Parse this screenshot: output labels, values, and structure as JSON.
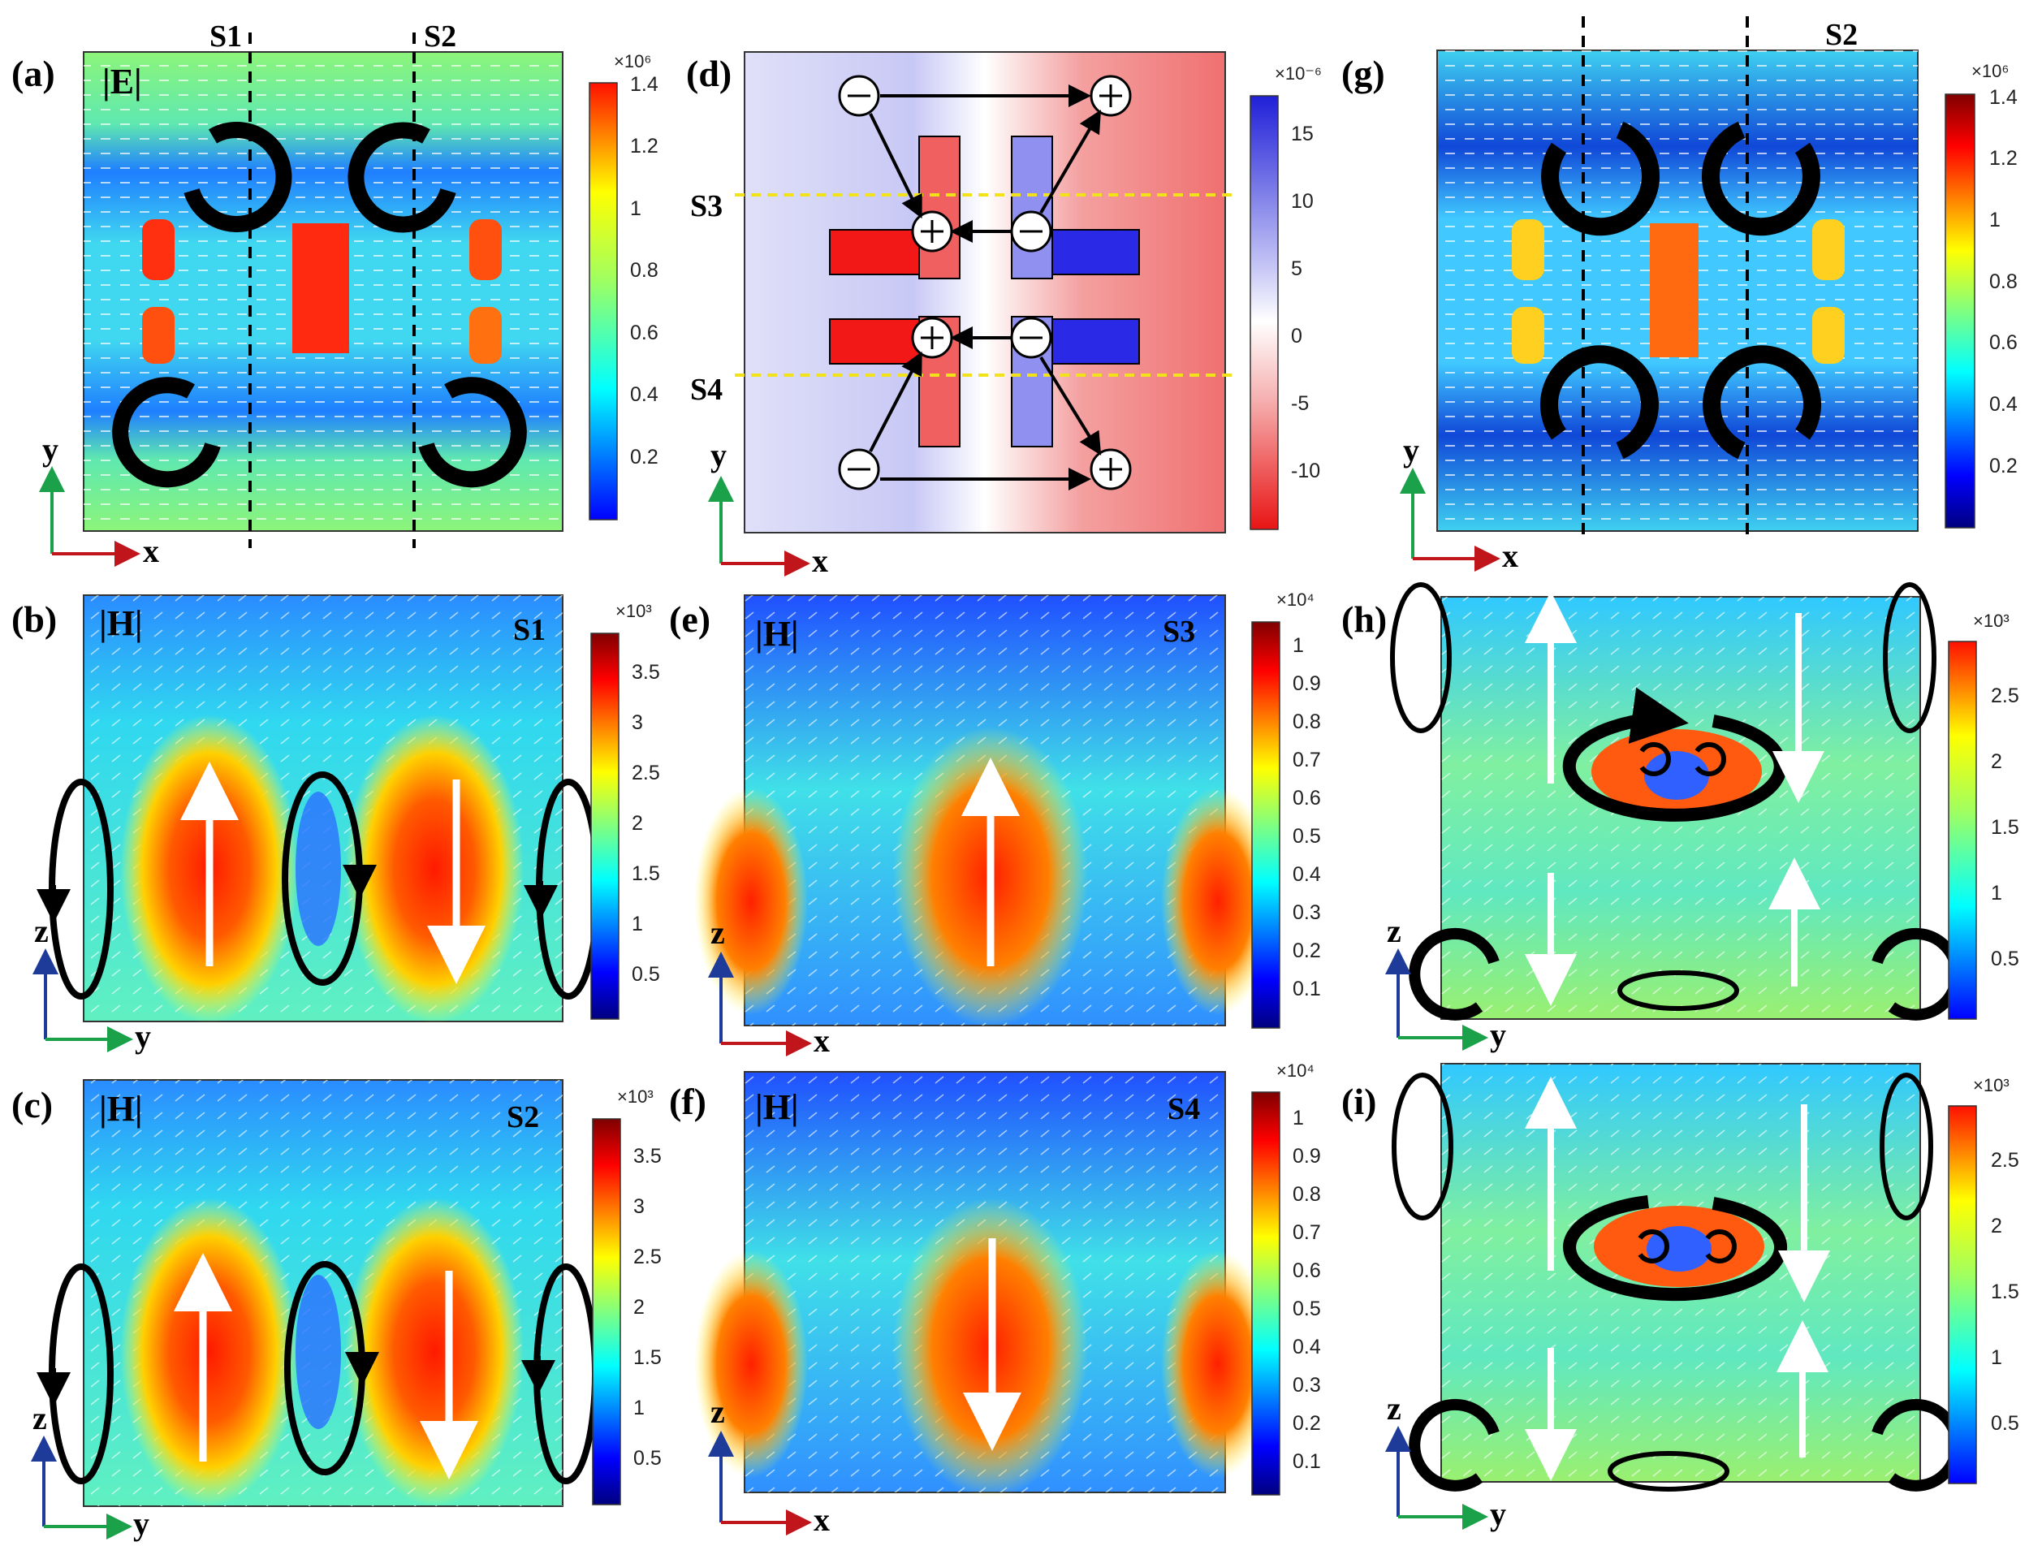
{
  "panels": {
    "a": {
      "label": "(a)",
      "field": "|E|"
    },
    "b": {
      "label": "(b)",
      "field": "|H|",
      "section": "S1"
    },
    "c": {
      "label": "(c)",
      "field": "|H|",
      "section": "S2"
    },
    "d": {
      "label": "(d)"
    },
    "e": {
      "label": "(e)",
      "field": "|H|",
      "section": "S3"
    },
    "f": {
      "label": "(f)",
      "field": "|H|",
      "section": "S4"
    },
    "g": {
      "label": "(g)"
    },
    "h": {
      "label": "(h)"
    },
    "i": {
      "label": "(i)"
    }
  },
  "cut_lines": {
    "s1": "S1",
    "s2": "S2",
    "s3": "S3",
    "s4": "S4"
  },
  "axes": {
    "x": "x",
    "y": "y",
    "z": "z"
  },
  "charge_symbols": {
    "positive": "⊕",
    "negative": "⊖",
    "current_loop": "C"
  },
  "colorbars": {
    "a": {
      "exponent": "×10⁶",
      "ticks": [
        "1.4",
        "1.2",
        "1",
        "0.8",
        "0.6",
        "0.4",
        "0.2"
      ]
    },
    "b": {
      "exponent": "×10³",
      "ticks": [
        "3.5",
        "3",
        "2.5",
        "2",
        "1.5",
        "1",
        "0.5"
      ]
    },
    "c": {
      "exponent": "×10³",
      "ticks": [
        "3.5",
        "3",
        "2.5",
        "2",
        "1.5",
        "1",
        "0.5"
      ]
    },
    "d": {
      "exponent": "×10⁻⁶",
      "ticks": [
        "15",
        "10",
        "5",
        "0",
        "-5",
        "-10"
      ]
    },
    "e": {
      "exponent": "×10⁴",
      "ticks": [
        "1",
        "0.9",
        "0.8",
        "0.7",
        "0.6",
        "0.5",
        "0.4",
        "0.3",
        "0.2",
        "0.1"
      ]
    },
    "f": {
      "exponent": "×10⁴",
      "ticks": [
        "1",
        "0.9",
        "0.8",
        "0.7",
        "0.6",
        "0.5",
        "0.4",
        "0.3",
        "0.2",
        "0.1"
      ]
    },
    "g": {
      "exponent": "×10⁶",
      "ticks": [
        "1.4",
        "1.2",
        "1",
        "0.8",
        "0.6",
        "0.4",
        "0.2"
      ]
    },
    "h": {
      "exponent": "×10³",
      "ticks": [
        "2.5",
        "2",
        "1.5",
        "1",
        "0.5"
      ]
    },
    "i": {
      "exponent": "×10³",
      "ticks": [
        "2.5",
        "2",
        "1.5",
        "1",
        "0.5"
      ]
    }
  },
  "colors": {
    "jet": [
      "#00007f",
      "#0000ff",
      "#0080ff",
      "#00ffff",
      "#80ff80",
      "#ffff00",
      "#ff8000",
      "#ff0000",
      "#7f0000"
    ],
    "diverging": [
      "#2a2ae0",
      "#8a8af0",
      "#ffffff",
      "#f08a8a",
      "#e02020"
    ],
    "cut_line_dash": "#000000",
    "cut_line_yellow": "#f2e21a",
    "axis_x": "#c0161b",
    "axis_y": "#1aa14a",
    "axis_z": "#1f3b9a"
  }
}
